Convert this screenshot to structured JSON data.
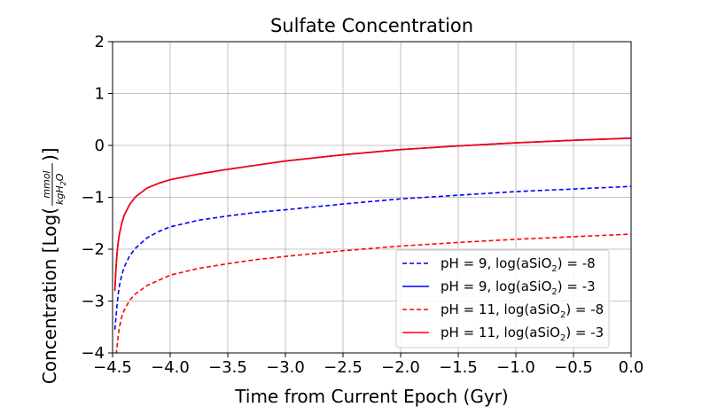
{
  "chart_data": {
    "type": "line",
    "title": "Sulfate Concentration",
    "xlabel": "Time from Current Epoch (Gyr)",
    "ylabel": {
      "prefix": "Concentration [Log(",
      "frac_num": "mmol",
      "frac_den": "kgH",
      "frac_den_sub": "2",
      "frac_den_tail": "O",
      "suffix": ")]"
    },
    "xlim": [
      -4.5,
      0.0
    ],
    "ylim": [
      -4,
      2
    ],
    "xticks": [
      -4.5,
      -4.0,
      -3.5,
      -3.0,
      -2.5,
      -2.0,
      -1.5,
      -1.0,
      -0.5,
      0.0
    ],
    "xtick_labels": [
      "−4.5",
      "−4.0",
      "−3.5",
      "−3.0",
      "−2.5",
      "−2.0",
      "−1.5",
      "−1.0",
      "−0.5",
      "0.0"
    ],
    "yticks": [
      -4,
      -3,
      -2,
      -1,
      0,
      1,
      2
    ],
    "ytick_labels": [
      "−4",
      "−3",
      "−2",
      "−1",
      "0",
      "1",
      "2"
    ],
    "grid": true,
    "legend_position": "bottom-right",
    "x": [
      -4.48,
      -4.47,
      -4.46,
      -4.45,
      -4.44,
      -4.42,
      -4.4,
      -4.35,
      -4.3,
      -4.2,
      -4.1,
      -4.0,
      -3.75,
      -3.5,
      -3.25,
      -3.0,
      -2.5,
      -2.0,
      -1.5,
      -1.0,
      -0.5,
      0.0
    ],
    "series": [
      {
        "name": "pH = 9, log(aSiO2) = -8",
        "label_main": "pH = 9, log(aSiO",
        "label_sub": "2",
        "label_tail": ") = -8",
        "color": "#0000ff",
        "dash": "dashed",
        "values": [
          -3.55,
          -3.3,
          -3.05,
          -2.85,
          -2.7,
          -2.5,
          -2.35,
          -2.12,
          -1.98,
          -1.78,
          -1.66,
          -1.57,
          -1.44,
          -1.36,
          -1.29,
          -1.24,
          -1.13,
          -1.03,
          -0.96,
          -0.89,
          -0.84,
          -0.79
        ]
      },
      {
        "name": "pH = 9, log(aSiO2) = -3",
        "label_main": "pH = 9, log(aSiO",
        "label_sub": "2",
        "label_tail": ") = -3",
        "color": "#0000ff",
        "dash": "solid",
        "values": [
          -2.8,
          -2.35,
          -2.05,
          -1.85,
          -1.7,
          -1.5,
          -1.35,
          -1.13,
          -0.99,
          -0.82,
          -0.73,
          -0.66,
          -0.55,
          -0.46,
          -0.38,
          -0.3,
          -0.18,
          -0.08,
          -0.01,
          0.05,
          0.1,
          0.14
        ]
      },
      {
        "name": "pH = 11, log(aSiO2) = -8",
        "label_main": "pH = 11, log(aSiO",
        "label_sub": "2",
        "label_tail": ") = -8",
        "color": "#ff0000",
        "dash": "dashed",
        "values": [
          -4.3,
          -4.05,
          -3.85,
          -3.65,
          -3.5,
          -3.3,
          -3.18,
          -2.98,
          -2.86,
          -2.7,
          -2.6,
          -2.5,
          -2.37,
          -2.28,
          -2.2,
          -2.14,
          -2.03,
          -1.94,
          -1.87,
          -1.81,
          -1.76,
          -1.71
        ]
      },
      {
        "name": "pH = 11, log(aSiO2) = -3",
        "label_main": "pH = 11, log(aSiO",
        "label_sub": "2",
        "label_tail": ") = -3",
        "color": "#ff0000",
        "dash": "solid",
        "values": [
          -2.8,
          -2.35,
          -2.05,
          -1.85,
          -1.7,
          -1.5,
          -1.35,
          -1.13,
          -0.99,
          -0.82,
          -0.73,
          -0.66,
          -0.55,
          -0.46,
          -0.38,
          -0.3,
          -0.18,
          -0.08,
          -0.01,
          0.05,
          0.1,
          0.14
        ]
      }
    ],
    "overlap_color": "#cc0066"
  }
}
